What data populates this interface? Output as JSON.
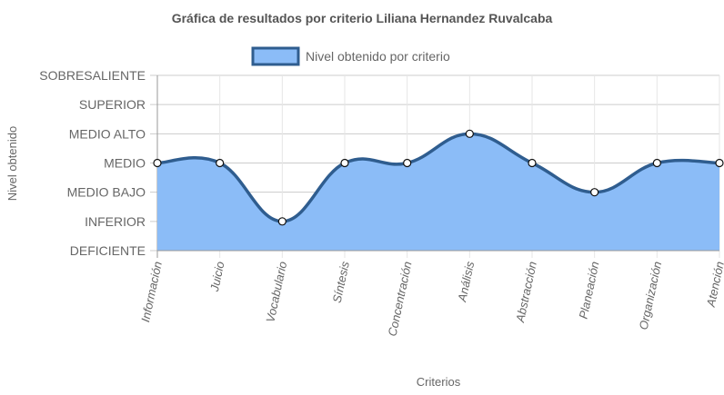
{
  "chart_data": {
    "type": "area",
    "title": "Gráfica de resultados por criterio Liliana Hernandez Ruvalcaba",
    "xlabel": "Criterios",
    "ylabel": "Nivel obtenido",
    "y_levels": [
      "DEFICIENTE",
      "INFERIOR",
      "MEDIO BAJO",
      "MEDIO",
      "MEDIO ALTO",
      "SUPERIOR",
      "SOBRESALIENTE"
    ],
    "ylim": [
      0,
      6
    ],
    "categories": [
      "Información",
      "Juicio",
      "Vocabulario",
      "Síntesis",
      "Concentración",
      "Análisis",
      "Abstracción",
      "Planeación",
      "Organización",
      "Atención"
    ],
    "series": [
      {
        "name": "Nivel obtenido por criterio",
        "values": [
          3,
          3,
          1,
          3,
          3,
          4,
          3,
          2,
          3,
          3
        ],
        "fill": "#8bbcf7",
        "stroke": "#2f5d8f"
      }
    ],
    "grid": true,
    "legend_position": "top"
  }
}
